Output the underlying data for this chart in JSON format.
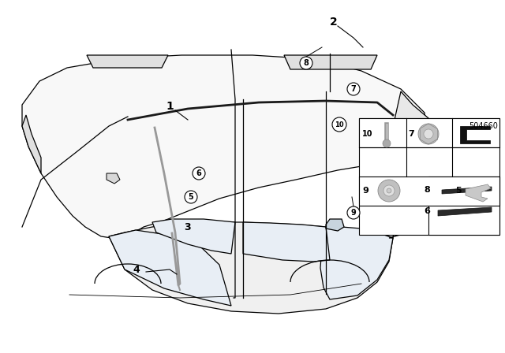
{
  "background_color": "#ffffff",
  "line_color": "#000000",
  "part_number": "504660",
  "car_body_color": "#f8f8f8",
  "glass_color": "#e8eef5",
  "quarter_glass_color": "#c8d4de",
  "rail_color": "#333333",
  "strip_color": "#999999",
  "component_dark": "#333333",
  "component_mid": "#aaaaaa",
  "component_light": "#d0d0d0"
}
